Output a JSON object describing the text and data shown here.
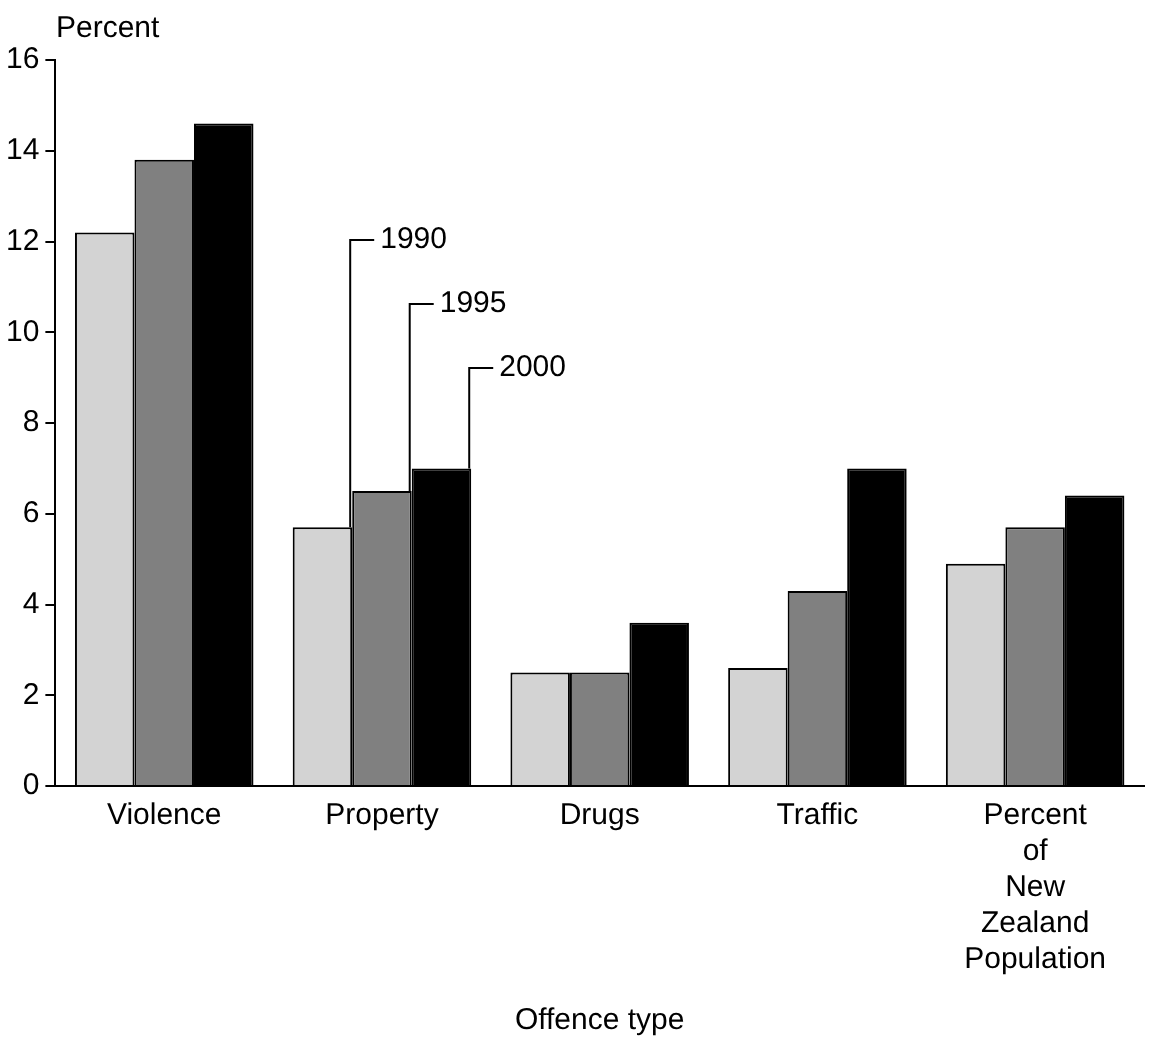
{
  "chart_data": {
    "type": "bar",
    "xlabel": "Offence type",
    "ylabel": "Percent",
    "categories": [
      "Violence",
      "Property",
      "Drugs",
      "Traffic",
      "Percent of New Zealand Population"
    ],
    "series": [
      {
        "name": "1990",
        "color": "#d3d3d3",
        "values": [
          12.2,
          5.7,
          2.5,
          2.6,
          4.9
        ]
      },
      {
        "name": "1995",
        "color": "#808080",
        "values": [
          13.8,
          6.5,
          2.5,
          4.3,
          5.7
        ]
      },
      {
        "name": "2000",
        "color": "#000000",
        "values": [
          14.6,
          7.0,
          3.6,
          7.0,
          6.4
        ]
      }
    ],
    "ylim": [
      0,
      16
    ],
    "yticks": [
      0,
      2,
      4,
      6,
      8,
      10,
      12,
      14,
      16
    ],
    "grid": false,
    "legend": false
  }
}
